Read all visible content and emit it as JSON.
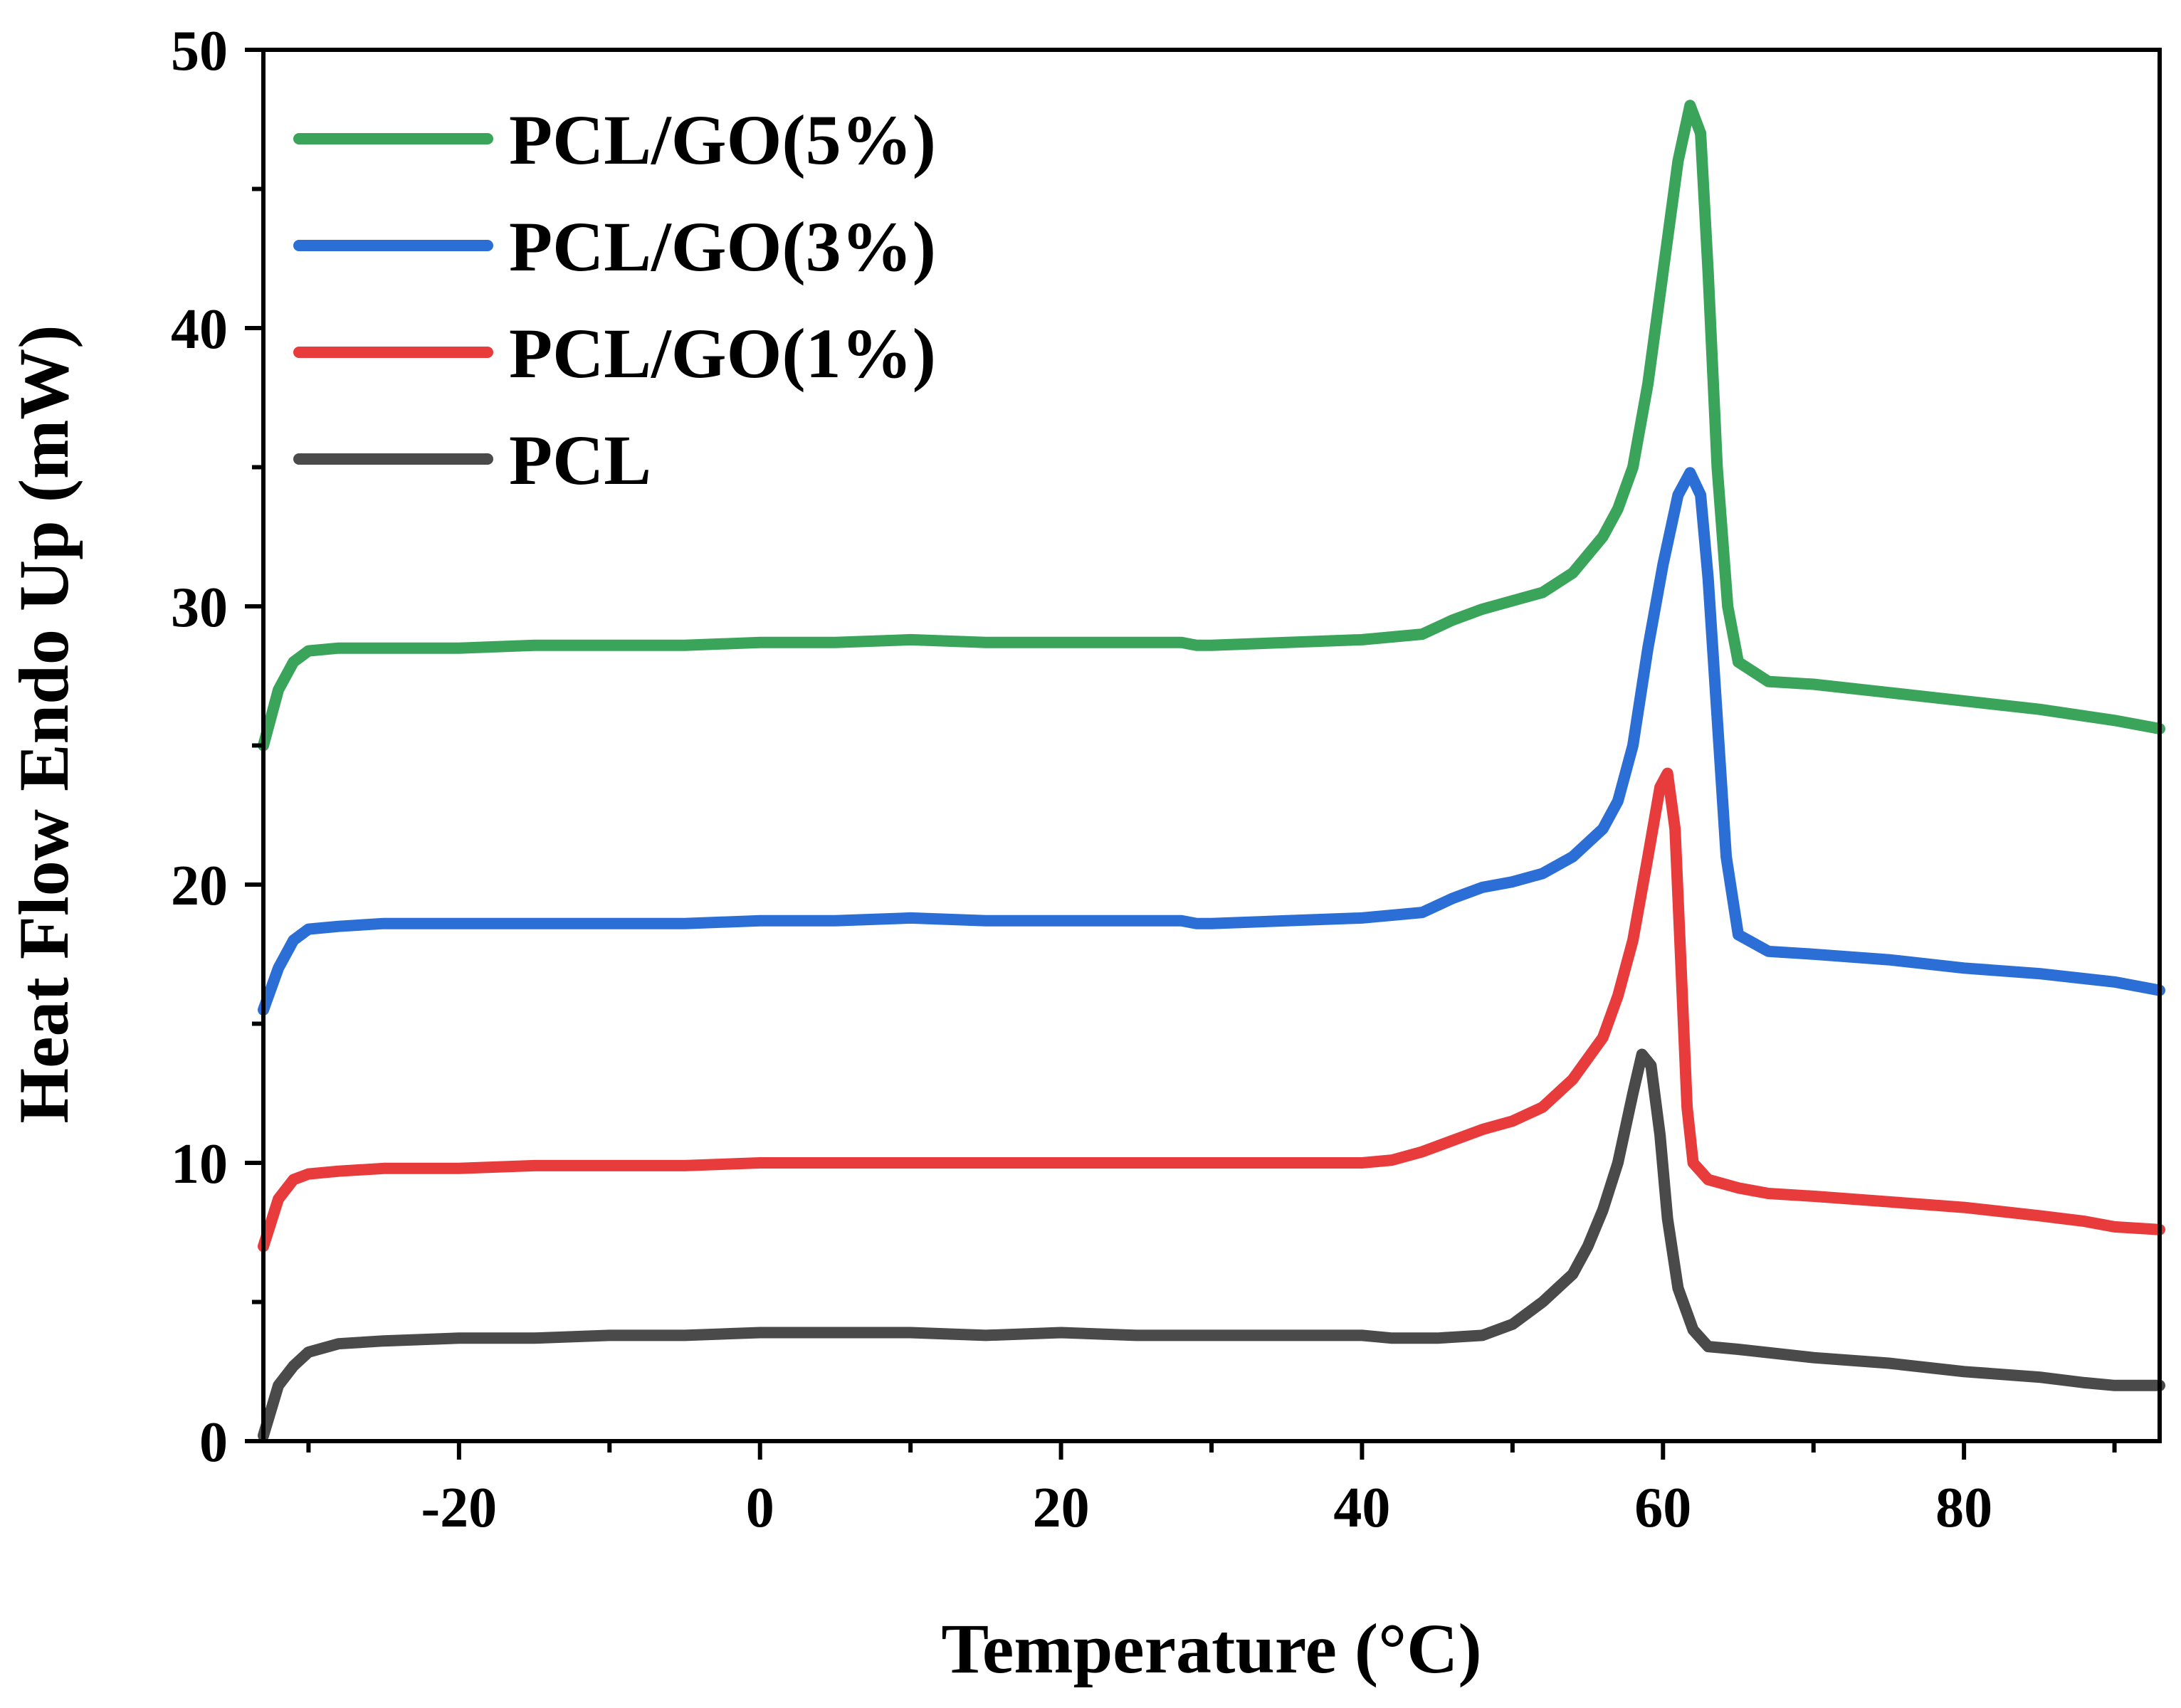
{
  "chart_data": {
    "type": "line",
    "xlabel": "Temperature (°C)",
    "ylabel": "Heat Flow Endo Up (mW)",
    "xlim": [
      -33,
      93
    ],
    "ylim": [
      0,
      50
    ],
    "x_ticks": [
      -20,
      0,
      20,
      40,
      60,
      80
    ],
    "y_ticks": [
      0,
      10,
      20,
      30,
      40,
      50
    ],
    "grid": false,
    "legend_position": "top-left",
    "series": [
      {
        "name": "PCL/GO(5%)",
        "color": "#3aa55a",
        "points": [
          [
            -33,
            25
          ],
          [
            -32,
            27
          ],
          [
            -31,
            28
          ],
          [
            -30,
            28.4
          ],
          [
            -28,
            28.5
          ],
          [
            -25,
            28.5
          ],
          [
            -20,
            28.5
          ],
          [
            -15,
            28.6
          ],
          [
            -10,
            28.6
          ],
          [
            -5,
            28.6
          ],
          [
            0,
            28.7
          ],
          [
            5,
            28.7
          ],
          [
            10,
            28.8
          ],
          [
            15,
            28.7
          ],
          [
            20,
            28.7
          ],
          [
            25,
            28.7
          ],
          [
            28,
            28.7
          ],
          [
            29,
            28.6
          ],
          [
            30,
            28.6
          ],
          [
            35,
            28.7
          ],
          [
            40,
            28.8
          ],
          [
            42,
            28.9
          ],
          [
            44,
            29
          ],
          [
            46,
            29.5
          ],
          [
            48,
            29.9
          ],
          [
            50,
            30.2
          ],
          [
            52,
            30.5
          ],
          [
            54,
            31.2
          ],
          [
            56,
            32.5
          ],
          [
            57,
            33.5
          ],
          [
            58,
            35
          ],
          [
            59,
            38
          ],
          [
            60,
            42
          ],
          [
            61,
            46
          ],
          [
            61.8,
            48
          ],
          [
            62.5,
            47
          ],
          [
            63,
            42
          ],
          [
            63.6,
            35
          ],
          [
            64.3,
            30
          ],
          [
            65,
            28
          ],
          [
            67,
            27.3
          ],
          [
            70,
            27.2
          ],
          [
            75,
            26.9
          ],
          [
            80,
            26.6
          ],
          [
            85,
            26.3
          ],
          [
            90,
            25.9
          ],
          [
            93,
            25.6
          ]
        ]
      },
      {
        "name": "PCL/GO(3%)",
        "color": "#2b6fd6",
        "points": [
          [
            -33,
            15.5
          ],
          [
            -32,
            17
          ],
          [
            -31,
            18
          ],
          [
            -30,
            18.4
          ],
          [
            -28,
            18.5
          ],
          [
            -25,
            18.6
          ],
          [
            -20,
            18.6
          ],
          [
            -15,
            18.6
          ],
          [
            -10,
            18.6
          ],
          [
            -5,
            18.6
          ],
          [
            0,
            18.7
          ],
          [
            5,
            18.7
          ],
          [
            10,
            18.8
          ],
          [
            15,
            18.7
          ],
          [
            20,
            18.7
          ],
          [
            25,
            18.7
          ],
          [
            28,
            18.7
          ],
          [
            29,
            18.6
          ],
          [
            30,
            18.6
          ],
          [
            35,
            18.7
          ],
          [
            40,
            18.8
          ],
          [
            42,
            18.9
          ],
          [
            44,
            19
          ],
          [
            46,
            19.5
          ],
          [
            48,
            19.9
          ],
          [
            50,
            20.1
          ],
          [
            52,
            20.4
          ],
          [
            54,
            21
          ],
          [
            56,
            22
          ],
          [
            57,
            23
          ],
          [
            58,
            25
          ],
          [
            59,
            28.5
          ],
          [
            60,
            31.5
          ],
          [
            61,
            34
          ],
          [
            61.8,
            34.8
          ],
          [
            62.5,
            34
          ],
          [
            63,
            31
          ],
          [
            63.6,
            26
          ],
          [
            64.2,
            21
          ],
          [
            65,
            18.2
          ],
          [
            67,
            17.6
          ],
          [
            70,
            17.5
          ],
          [
            75,
            17.3
          ],
          [
            80,
            17
          ],
          [
            85,
            16.8
          ],
          [
            90,
            16.5
          ],
          [
            93,
            16.2
          ]
        ]
      },
      {
        "name": "PCL/GO(1%)",
        "color": "#e83c3c",
        "points": [
          [
            -33,
            7
          ],
          [
            -32,
            8.7
          ],
          [
            -31,
            9.4
          ],
          [
            -30,
            9.6
          ],
          [
            -28,
            9.7
          ],
          [
            -25,
            9.8
          ],
          [
            -20,
            9.8
          ],
          [
            -15,
            9.9
          ],
          [
            -10,
            9.9
          ],
          [
            -5,
            9.9
          ],
          [
            0,
            10
          ],
          [
            10,
            10
          ],
          [
            20,
            10
          ],
          [
            30,
            10
          ],
          [
            40,
            10
          ],
          [
            42,
            10.1
          ],
          [
            44,
            10.4
          ],
          [
            46,
            10.8
          ],
          [
            48,
            11.2
          ],
          [
            50,
            11.5
          ],
          [
            52,
            12
          ],
          [
            54,
            13
          ],
          [
            56,
            14.5
          ],
          [
            57,
            16
          ],
          [
            58,
            18
          ],
          [
            59,
            21
          ],
          [
            59.8,
            23.5
          ],
          [
            60.3,
            24
          ],
          [
            60.8,
            22
          ],
          [
            61.2,
            17
          ],
          [
            61.6,
            12
          ],
          [
            62,
            10
          ],
          [
            63,
            9.4
          ],
          [
            65,
            9.1
          ],
          [
            67,
            8.9
          ],
          [
            70,
            8.8
          ],
          [
            75,
            8.6
          ],
          [
            80,
            8.4
          ],
          [
            85,
            8.1
          ],
          [
            88,
            7.9
          ],
          [
            90,
            7.7
          ],
          [
            93,
            7.6
          ]
        ]
      },
      {
        "name": "PCL",
        "color": "#4a4a4a",
        "points": [
          [
            -33,
            0.2
          ],
          [
            -32,
            2
          ],
          [
            -31,
            2.7
          ],
          [
            -30,
            3.2
          ],
          [
            -28,
            3.5
          ],
          [
            -25,
            3.6
          ],
          [
            -20,
            3.7
          ],
          [
            -15,
            3.7
          ],
          [
            -10,
            3.8
          ],
          [
            -5,
            3.8
          ],
          [
            0,
            3.9
          ],
          [
            5,
            3.9
          ],
          [
            10,
            3.9
          ],
          [
            15,
            3.8
          ],
          [
            20,
            3.9
          ],
          [
            25,
            3.8
          ],
          [
            30,
            3.8
          ],
          [
            35,
            3.8
          ],
          [
            40,
            3.8
          ],
          [
            42,
            3.7
          ],
          [
            45,
            3.7
          ],
          [
            48,
            3.8
          ],
          [
            50,
            4.2
          ],
          [
            52,
            5
          ],
          [
            54,
            6
          ],
          [
            55,
            7
          ],
          [
            56,
            8.3
          ],
          [
            57,
            10
          ],
          [
            58,
            12.5
          ],
          [
            58.6,
            13.9
          ],
          [
            59.2,
            13.5
          ],
          [
            59.8,
            11
          ],
          [
            60.3,
            8
          ],
          [
            61,
            5.5
          ],
          [
            62,
            4
          ],
          [
            63,
            3.4
          ],
          [
            65,
            3.3
          ],
          [
            70,
            3
          ],
          [
            75,
            2.8
          ],
          [
            80,
            2.5
          ],
          [
            85,
            2.3
          ],
          [
            88,
            2.1
          ],
          [
            90,
            2
          ],
          [
            93,
            2
          ]
        ]
      }
    ]
  }
}
